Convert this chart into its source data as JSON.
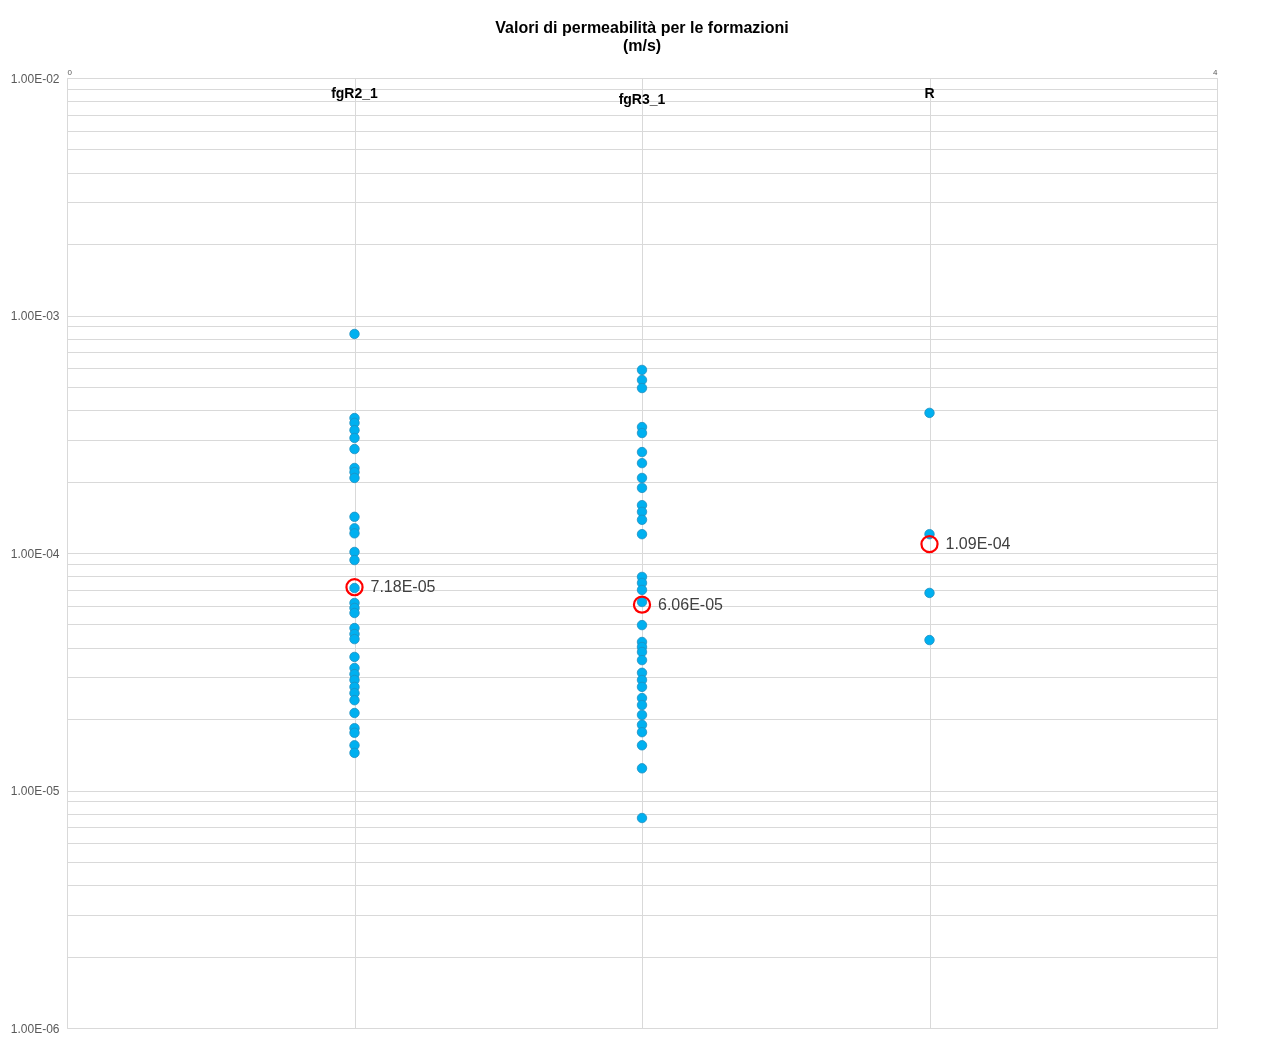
{
  "chart_data": {
    "type": "scatter",
    "title": "Valori di permeabilità per le formazioni\n(m/s)",
    "log": "y",
    "grid": true,
    "marker": "circle",
    "xlim": [
      0,
      4
    ],
    "xticks": [
      0,
      {
        "value": 1,
        "label": null
      },
      {
        "value": 2,
        "label": null
      },
      {
        "value": 3,
        "label": null
      },
      4
    ],
    "annotations": [
      "fgR2_1",
      "fgR3_1",
      "R"
    ],
    "ylim": [
      1e-06,
      0.01
    ],
    "yticks": [
      {
        "value": 1e-06,
        "label": "1.00E-06"
      },
      {
        "value": 2e-06,
        "label": null
      },
      {
        "value": 3e-06,
        "label": null
      },
      {
        "value": 4e-06,
        "label": null
      },
      {
        "value": 5e-06,
        "label": null
      },
      {
        "value": 6e-06,
        "label": null
      },
      {
        "value": 7e-06,
        "label": null
      },
      {
        "value": 8e-06,
        "label": null
      },
      {
        "value": 9e-06,
        "label": null
      },
      {
        "value": 1e-05,
        "label": "1.00E-05"
      },
      {
        "value": 2e-05,
        "label": null
      },
      {
        "value": 3e-05,
        "label": null
      },
      {
        "value": 4e-05,
        "label": null
      },
      {
        "value": 5e-05,
        "label": null
      },
      {
        "value": 6e-05,
        "label": null
      },
      {
        "value": 7e-05,
        "label": null
      },
      {
        "value": 8e-05,
        "label": null
      },
      {
        "value": 9e-05,
        "label": null
      },
      {
        "value": 0.0001,
        "label": "1.00E-04"
      },
      {
        "value": 0.0002,
        "label": null
      },
      {
        "value": 0.0003,
        "label": null
      },
      {
        "value": 0.0004,
        "label": null
      },
      {
        "value": 0.0005,
        "label": null
      },
      {
        "value": 0.0006,
        "label": null
      },
      {
        "value": 0.0007,
        "label": null
      },
      {
        "value": 0.0008,
        "label": null
      },
      {
        "value": 0.0009,
        "label": null
      },
      {
        "value": 0.001,
        "label": "1.00E-03"
      },
      {
        "value": 0.002,
        "label": null
      },
      {
        "value": 0.003,
        "label": null
      },
      {
        "value": 0.004,
        "label": null
      },
      {
        "value": 0.005,
        "label": null
      },
      {
        "value": 0.006,
        "label": null
      },
      {
        "value": 0.007,
        "label": null
      },
      {
        "value": 0.008,
        "label": null
      },
      {
        "value": 0.009,
        "label": null
      },
      {
        "value": 0.01,
        "label": "1.00E-02"
      }
    ],
    "series": [
      {
        "color": "#00b0f0",
        "x": [
          1,
          1,
          1,
          1,
          1,
          1,
          1,
          1,
          1,
          1,
          1,
          1,
          1,
          1,
          1,
          1,
          1,
          1,
          1,
          1,
          1,
          1,
          1,
          1,
          1,
          1,
          1,
          1,
          1,
          1,
          1,
          1,
          1
        ],
        "values": [
          0.000836,
          0.00037,
          0.000353,
          0.000329,
          0.000305,
          0.000274,
          0.000228,
          0.000219,
          0.000207,
          0.000142,
          0.000127,
          0.000121,
          0.000101,
          9.34e-05,
          7.12e-05,
          6.16e-05,
          5.87e-05,
          5.59e-05,
          4.83e-05,
          4.56e-05,
          4.34e-05,
          3.65e-05,
          3.28e-05,
          3.09e-05,
          2.92e-05,
          2.73e-05,
          2.57e-05,
          2.4e-05,
          2.12e-05,
          1.83e-05,
          1.75e-05,
          1.55e-05,
          1.44e-05
        ]
      },
      {
        "color": "#00b0f0",
        "x": [
          2,
          2,
          2,
          2,
          2,
          2,
          2,
          2,
          2,
          2,
          2,
          2,
          2,
          2,
          2,
          2,
          2,
          2,
          2,
          2,
          2,
          2,
          2,
          2,
          2,
          2,
          2,
          2,
          2,
          2,
          2,
          2,
          2
        ],
        "values": [
          0.00059,
          0.000535,
          0.000495,
          0.000339,
          0.00032,
          0.000266,
          0.000239,
          0.000207,
          0.000188,
          0.000159,
          0.000149,
          0.000138,
          0.00012,
          7.93e-05,
          7.48e-05,
          6.99e-05,
          6.22e-05,
          4.97e-05,
          4.22e-05,
          4.02e-05,
          3.83e-05,
          3.54e-05,
          3.13e-05,
          2.92e-05,
          2.73e-05,
          2.45e-05,
          2.29e-05,
          2.08e-05,
          1.89e-05,
          1.76e-05,
          1.55e-05,
          1.24e-05,
          7.66e-06
        ]
      },
      {
        "color": "#00b0f0",
        "x": [
          3,
          3,
          3,
          3
        ],
        "values": [
          0.000389,
          0.00012,
          6.79e-05,
          4.3e-05
        ]
      },
      {
        "color": "#ff0000",
        "x": [
          1,
          2,
          3
        ],
        "values": [
          7.18e-05,
          6.06e-05,
          0.000109
        ],
        "value_labels": [
          "7.18E-05",
          "6.06E-05",
          "1.09E-04"
        ]
      }
    ]
  }
}
